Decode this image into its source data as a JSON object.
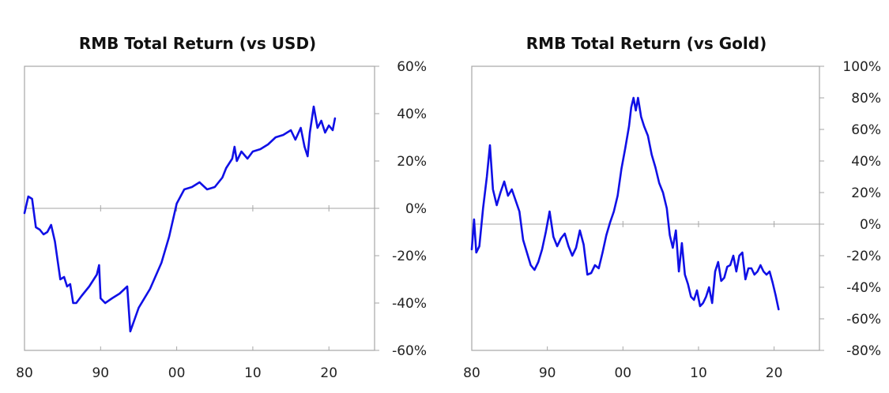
{
  "chart_data": [
    {
      "type": "line",
      "title": "RMB Total Return (vs USD)",
      "xlabel": "",
      "ylabel": "",
      "xlim": [
        1980,
        2026
      ],
      "ylim": [
        -60,
        60
      ],
      "y_ticks": [
        60,
        40,
        20,
        0,
        -20,
        -40,
        -60
      ],
      "y_tick_labels": [
        "60%",
        "40%",
        "20%",
        "0%",
        "-20%",
        "-40%",
        "-60%"
      ],
      "x_ticks": [
        1980,
        1990,
        2000,
        2010,
        2020
      ],
      "x_tick_labels": [
        "80",
        "90",
        "00",
        "10",
        "20"
      ],
      "grid": false,
      "y_axis_side": "right",
      "color": "#1010e6",
      "series": [
        {
          "x": [
            1980.0,
            1980.5,
            1981.0,
            1981.5,
            1982.0,
            1982.5,
            1983.0,
            1983.5,
            1984.0,
            1984.7,
            1985.2,
            1985.6,
            1986.0,
            1986.4,
            1986.8,
            1987.5,
            1988.5,
            1989.5,
            1989.8,
            1990.0,
            1990.6,
            1991.5,
            1992.5,
            1993.5,
            1993.9,
            1995.0,
            1996.5,
            1998.0,
            1999.0,
            2000.0,
            2001.0,
            2002.0,
            2003.0,
            2004.0,
            2005.0,
            2006.0,
            2006.5,
            2007.3,
            2007.6,
            2007.9,
            2008.5,
            2009.3,
            2010.0,
            2011.0,
            2012.0,
            2013.0,
            2014.0,
            2015.0,
            2015.6,
            2016.3,
            2016.8,
            2017.2,
            2017.5,
            2018.0,
            2018.5,
            2019.0,
            2019.5,
            2020.0,
            2020.5,
            2020.8
          ],
          "y": [
            -2,
            5,
            4,
            -8,
            -9,
            -11,
            -10,
            -7,
            -14,
            -30,
            -29,
            -33,
            -32,
            -40,
            -40,
            -37,
            -33,
            -28,
            -24,
            -38,
            -40,
            -38,
            -36,
            -33,
            -52,
            -42,
            -34,
            -23,
            -12,
            2,
            8,
            9,
            11,
            8,
            9,
            13,
            17,
            21,
            26,
            20,
            24,
            21,
            24,
            25,
            27,
            30,
            31,
            33,
            29,
            34,
            26,
            22,
            32,
            43,
            34,
            37,
            32,
            35,
            33,
            38
          ]
        }
      ]
    },
    {
      "type": "line",
      "title": "RMB Total Return (vs Gold)",
      "xlabel": "",
      "ylabel": "",
      "xlim": [
        1980,
        2026
      ],
      "ylim": [
        -80,
        100
      ],
      "y_ticks": [
        100,
        80,
        60,
        40,
        20,
        0,
        -20,
        -40,
        -60,
        -80
      ],
      "y_tick_labels": [
        "100%",
        "80%",
        "60%",
        "40%",
        "20%",
        "0%",
        "-20%",
        "-40%",
        "-60%",
        "-80%"
      ],
      "x_ticks": [
        1980,
        1990,
        2000,
        2010,
        2020
      ],
      "x_tick_labels": [
        "80",
        "90",
        "00",
        "10",
        "20"
      ],
      "grid": false,
      "y_axis_side": "right",
      "color": "#1010e6",
      "series": [
        {
          "x": [
            1980.0,
            1980.3,
            1980.6,
            1981.0,
            1981.5,
            1982.0,
            1982.4,
            1982.8,
            1983.3,
            1983.8,
            1984.3,
            1984.8,
            1985.3,
            1985.8,
            1986.3,
            1986.8,
            1987.3,
            1987.8,
            1988.3,
            1988.8,
            1989.3,
            1989.8,
            1990.3,
            1990.8,
            1991.3,
            1991.8,
            1992.3,
            1992.8,
            1993.3,
            1993.8,
            1994.3,
            1994.8,
            1995.3,
            1995.8,
            1996.3,
            1996.8,
            1997.3,
            1997.8,
            1998.3,
            1998.8,
            1999.3,
            1999.8,
            2000.3,
            2000.8,
            2001.1,
            2001.4,
            2001.7,
            2002.0,
            2002.4,
            2002.8,
            2003.3,
            2003.8,
            2004.3,
            2004.8,
            2005.3,
            2005.8,
            2006.2,
            2006.6,
            2007.0,
            2007.4,
            2007.8,
            2008.2,
            2008.6,
            2009.0,
            2009.4,
            2009.8,
            2010.2,
            2010.6,
            2011.0,
            2011.4,
            2011.8,
            2012.2,
            2012.6,
            2013.0,
            2013.4,
            2013.8,
            2014.2,
            2014.6,
            2015.0,
            2015.4,
            2015.8,
            2016.2,
            2016.6,
            2017.0,
            2017.4,
            2017.8,
            2018.2,
            2018.6,
            2019.0,
            2019.4,
            2019.8,
            2020.2,
            2020.6
          ],
          "y": [
            -16,
            3,
            -18,
            -14,
            10,
            30,
            50,
            22,
            12,
            20,
            27,
            18,
            22,
            15,
            8,
            -10,
            -18,
            -26,
            -29,
            -24,
            -16,
            -5,
            8,
            -8,
            -14,
            -9,
            -6,
            -14,
            -20,
            -15,
            -4,
            -13,
            -32,
            -31,
            -26,
            -28,
            -18,
            -7,
            1,
            8,
            18,
            35,
            48,
            62,
            74,
            80,
            72,
            80,
            68,
            62,
            56,
            44,
            36,
            26,
            20,
            10,
            -7,
            -15,
            -4,
            -30,
            -12,
            -32,
            -38,
            -46,
            -48,
            -42,
            -52,
            -50,
            -46,
            -40,
            -50,
            -30,
            -24,
            -36,
            -34,
            -27,
            -26,
            -20,
            -30,
            -20,
            -18,
            -35,
            -28,
            -28,
            -32,
            -30,
            -26,
            -30,
            -32,
            -30,
            -37,
            -45,
            -54
          ]
        }
      ]
    }
  ]
}
